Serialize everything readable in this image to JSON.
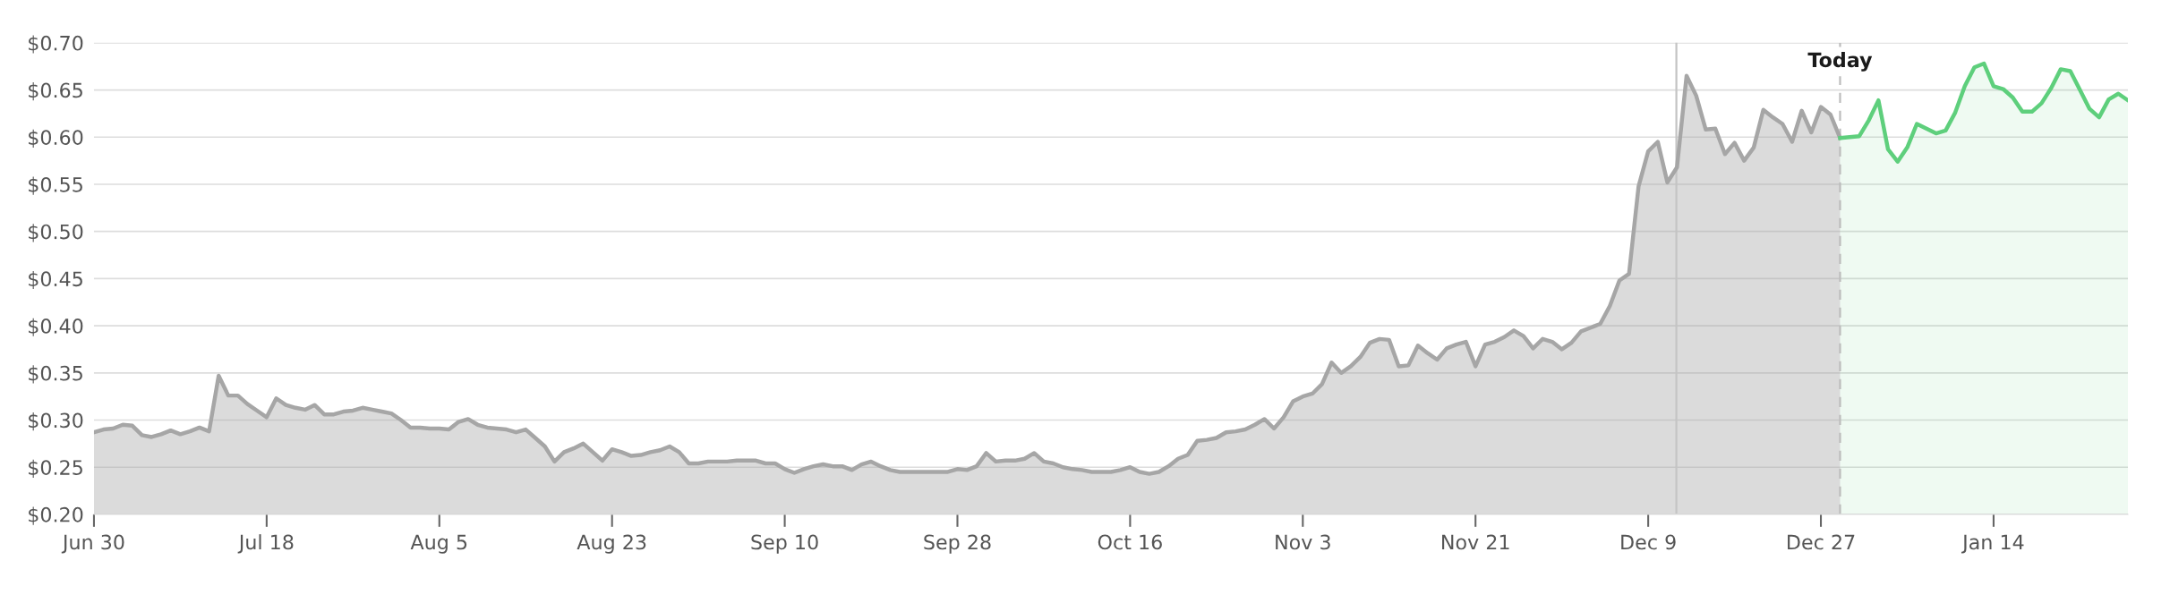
{
  "chart_data": {
    "type": "area",
    "categories": [
      "Jun 30",
      null,
      null,
      null,
      null,
      null,
      null,
      null,
      null,
      null,
      null,
      null,
      null,
      null,
      null,
      null,
      null,
      null,
      "Jul 18",
      null,
      null,
      null,
      null,
      null,
      null,
      null,
      null,
      null,
      null,
      null,
      null,
      null,
      null,
      null,
      null,
      null,
      "Aug 5",
      null,
      null,
      null,
      null,
      null,
      null,
      null,
      null,
      null,
      null,
      null,
      null,
      null,
      null,
      null,
      null,
      null,
      "Aug 23",
      null,
      null,
      null,
      null,
      null,
      null,
      null,
      null,
      null,
      null,
      null,
      null,
      null,
      null,
      null,
      null,
      null,
      "Sep 10",
      null,
      null,
      null,
      null,
      null,
      null,
      null,
      null,
      null,
      null,
      null,
      null,
      null,
      null,
      null,
      null,
      null,
      "Sep 28",
      null,
      null,
      null,
      null,
      null,
      null,
      null,
      null,
      null,
      null,
      null,
      null,
      null,
      null,
      null,
      null,
      null,
      "Oct 16",
      null,
      null,
      null,
      null,
      null,
      null,
      null,
      null,
      null,
      null,
      null,
      null,
      null,
      null,
      null,
      null,
      null,
      "Nov 3",
      null,
      null,
      null,
      null,
      null,
      null,
      null,
      null,
      null,
      null,
      null,
      null,
      null,
      null,
      null,
      null,
      null,
      "Nov 21",
      null,
      null,
      null,
      null,
      null,
      null,
      null,
      null,
      null,
      null,
      null,
      null,
      null,
      null,
      null,
      null,
      null,
      "Dec 9",
      null,
      null,
      null,
      null,
      null,
      null,
      null,
      null,
      null,
      null,
      null,
      null,
      null,
      null,
      null,
      null,
      null,
      "Dec 27",
      null,
      null,
      null,
      null,
      null,
      null,
      null,
      null,
      null,
      null,
      null,
      null,
      null,
      null,
      null,
      null,
      null,
      "Jan 14",
      null,
      null,
      null,
      null,
      null,
      null,
      null,
      null,
      null,
      null,
      null,
      null,
      null,
      null
    ],
    "ylim": [
      0.2,
      0.7
    ],
    "yticks": [
      {
        "value": 0.2,
        "label": "$0.20"
      },
      {
        "value": 0.25,
        "label": "$0.25"
      },
      {
        "value": 0.3,
        "label": "$0.30"
      },
      {
        "value": 0.35,
        "label": "$0.35"
      },
      {
        "value": 0.4,
        "label": "$0.40"
      },
      {
        "value": 0.45,
        "label": "$0.45"
      },
      {
        "value": 0.5,
        "label": "$0.50"
      },
      {
        "value": 0.55,
        "label": "$0.55"
      },
      {
        "value": 0.6,
        "label": "$0.60"
      },
      {
        "value": 0.65,
        "label": "$0.65"
      },
      {
        "value": 0.7,
        "label": "$0.70"
      }
    ],
    "grid": "y",
    "annotations": [
      "Today"
    ],
    "series": [
      {
        "color": "#a6a6a6",
        "values": [
          0.287,
          0.29,
          0.291,
          0.295,
          0.294,
          0.284,
          0.282,
          0.285,
          0.289,
          0.285,
          0.288,
          0.292,
          0.288,
          0.347,
          0.326,
          0.326,
          0.317,
          0.31,
          0.303,
          0.323,
          0.316,
          0.313,
          0.311,
          0.316,
          0.306,
          0.306,
          0.309,
          0.31,
          0.313,
          0.311,
          0.309,
          0.307,
          0.3,
          0.292,
          0.292,
          0.291,
          0.291,
          0.29,
          0.298,
          0.301,
          0.295,
          0.292,
          0.291,
          0.29,
          0.287,
          0.29,
          0.281,
          0.272,
          0.256,
          0.266,
          0.27,
          0.275,
          0.266,
          0.257,
          0.269,
          0.266,
          0.262,
          0.263,
          0.266,
          0.268,
          0.272,
          0.266,
          0.254,
          0.254,
          0.256,
          0.256,
          0.256,
          0.257,
          0.257,
          0.257,
          0.254,
          0.254,
          0.248,
          0.244,
          0.248,
          0.251,
          0.253,
          0.251,
          0.251,
          0.247,
          0.253,
          0.256,
          0.251,
          0.247,
          0.245,
          0.245,
          0.245,
          0.245,
          0.245,
          0.245,
          0.248,
          0.247,
          0.251,
          0.265,
          0.256,
          0.257,
          0.257,
          0.259,
          0.265,
          0.256,
          0.254,
          0.25,
          0.248,
          0.247,
          0.245,
          0.245,
          0.245,
          0.247,
          0.25,
          0.245,
          0.243,
          0.245,
          0.251,
          0.259,
          0.263,
          0.278,
          0.279,
          0.281,
          0.287,
          0.288,
          0.29,
          0.295,
          0.301,
          0.291,
          0.303,
          0.32,
          0.325,
          0.328,
          0.338,
          0.361,
          0.35,
          0.357,
          0.367,
          0.382,
          0.386,
          0.385,
          0.357,
          0.358,
          0.379,
          0.371,
          0.364,
          0.376,
          0.38,
          0.383,
          0.357,
          0.38,
          0.383,
          0.388,
          0.395,
          0.389,
          0.376,
          0.386,
          0.383,
          0.375,
          0.382,
          0.394,
          0.398,
          0.402,
          0.421,
          0.448,
          0.455,
          0.548,
          0.585,
          0.595,
          0.552,
          0.568,
          0.665,
          0.644,
          0.608,
          0.609,
          0.582,
          0.594,
          0.575,
          0.589,
          0.629,
          0.621,
          0.614,
          0.595,
          0.628,
          0.605,
          0.632,
          0.624,
          0.599,
          null,
          null,
          null,
          null,
          null,
          null,
          null,
          null,
          null,
          null,
          null,
          null,
          null,
          null,
          null,
          null,
          null,
          null,
          null,
          null,
          null,
          null,
          null,
          null,
          null,
          null,
          null,
          null,
          null,
          null
        ]
      },
      {
        "color": "#5ecf7c",
        "values": [
          null,
          null,
          null,
          null,
          null,
          null,
          null,
          null,
          null,
          null,
          null,
          null,
          null,
          null,
          null,
          null,
          null,
          null,
          null,
          null,
          null,
          null,
          null,
          null,
          null,
          null,
          null,
          null,
          null,
          null,
          null,
          null,
          null,
          null,
          null,
          null,
          null,
          null,
          null,
          null,
          null,
          null,
          null,
          null,
          null,
          null,
          null,
          null,
          null,
          null,
          null,
          null,
          null,
          null,
          null,
          null,
          null,
          null,
          null,
          null,
          null,
          null,
          null,
          null,
          null,
          null,
          null,
          null,
          null,
          null,
          null,
          null,
          null,
          null,
          null,
          null,
          null,
          null,
          null,
          null,
          null,
          null,
          null,
          null,
          null,
          null,
          null,
          null,
          null,
          null,
          null,
          null,
          null,
          null,
          null,
          null,
          null,
          null,
          null,
          null,
          null,
          null,
          null,
          null,
          null,
          null,
          null,
          null,
          null,
          null,
          null,
          null,
          null,
          null,
          null,
          null,
          null,
          null,
          null,
          null,
          null,
          null,
          null,
          null,
          null,
          null,
          null,
          null,
          null,
          null,
          null,
          null,
          null,
          null,
          null,
          null,
          null,
          null,
          null,
          null,
          null,
          null,
          null,
          null,
          null,
          null,
          null,
          null,
          null,
          null,
          null,
          null,
          null,
          null,
          null,
          null,
          null,
          null,
          null,
          null,
          null,
          null,
          null,
          null,
          null,
          null,
          null,
          null,
          null,
          null,
          null,
          null,
          null,
          null,
          null,
          null,
          null,
          null,
          null,
          null,
          null,
          null,
          0.599,
          0.6,
          0.601,
          0.618,
          0.639,
          0.587,
          0.574,
          0.589,
          0.614,
          0.609,
          0.604,
          0.607,
          0.626,
          0.654,
          0.674,
          0.678,
          0.654,
          0.651,
          0.642,
          0.627,
          0.627,
          0.636,
          0.652,
          0.672,
          0.67,
          0.65,
          0.63,
          0.621,
          0.64,
          0.646,
          0.639
        ]
      }
    ]
  }
}
